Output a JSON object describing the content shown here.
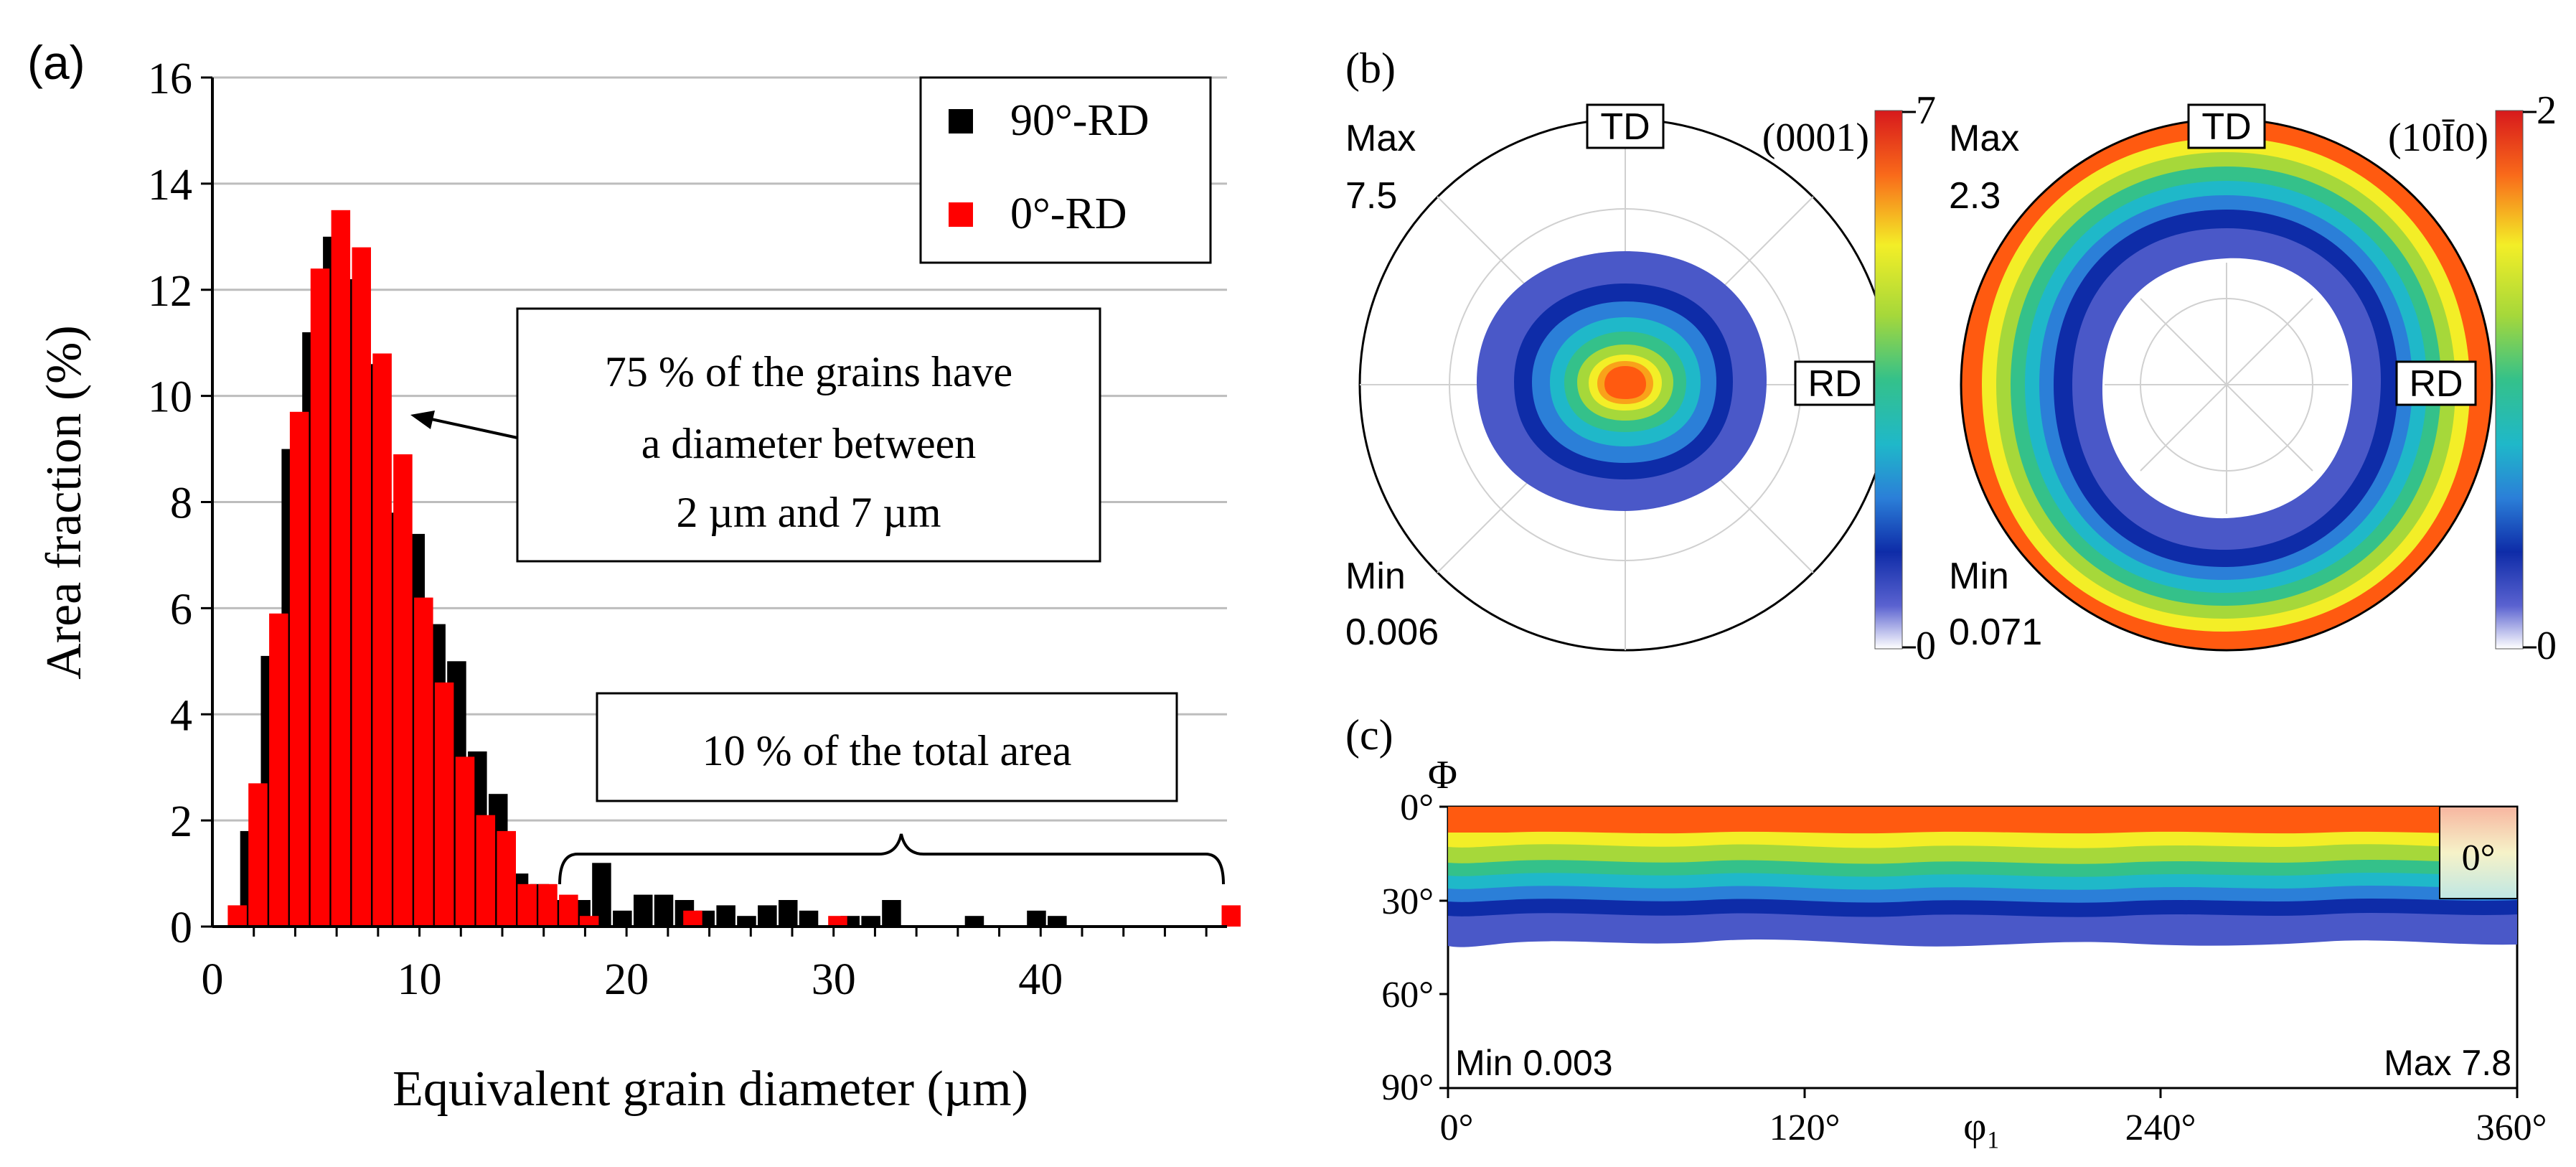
{
  "panel_a": {
    "label": "(a)",
    "annotation_text": [
      "75 % of the grains have",
      "a diameter between",
      "2 µm and 7 µm"
    ],
    "brace_text": "10 % of the total area"
  },
  "panel_b": {
    "label": "(b)",
    "pf1": {
      "plane": "(0001)",
      "td": "TD",
      "rd": "RD",
      "max_label": "Max",
      "max_value": "7.5",
      "min_label": "Min",
      "min_value": "0.006",
      "scale_max": "7",
      "scale_min": "0"
    },
    "pf2": {
      "plane": "(10Ī0)",
      "td": "TD",
      "rd": "RD",
      "max_label": "Max",
      "max_value": "2.3",
      "min_label": "Min",
      "min_value": "0.071",
      "scale_max": "2",
      "scale_min": "0"
    }
  },
  "panel_c": {
    "label": "(c)",
    "phi_label": "Φ",
    "phi1_label": "φ₁",
    "y_ticks": [
      "0°",
      "30°",
      "60°",
      "90°"
    ],
    "x_ticks": [
      "0°",
      "120°",
      "240°",
      "360°"
    ],
    "min_text": "Min 0.003",
    "max_text": "Max 7.8",
    "inset_label": "0°"
  },
  "colors": {
    "series_90": "#000000",
    "series_0": "#ff0000"
  },
  "chart_data": {
    "type": "bar",
    "title": "",
    "xlabel": "Equivalent grain diameter (µm)",
    "ylabel": "Area fraction (%)",
    "xlim": [
      0,
      49
    ],
    "ylim": [
      0,
      16
    ],
    "xticks": [
      0,
      10,
      20,
      30,
      40
    ],
    "yticks": [
      0,
      2,
      4,
      6,
      8,
      10,
      12,
      14,
      16
    ],
    "grid": true,
    "legend": "top-right",
    "series": [
      {
        "name": "90°-RD",
        "color": "#000000",
        "x": [
          1.8,
          2.8,
          3.8,
          4.8,
          5.8,
          6.8,
          7.8,
          8.8,
          9.8,
          10.8,
          11.8,
          12.8,
          13.8,
          14.8,
          15.8,
          16.8,
          17.8,
          18.8,
          19.8,
          20.8,
          21.8,
          22.8,
          23.8,
          24.8,
          25.8,
          26.8,
          27.8,
          28.8,
          30.8,
          31.8,
          32.8,
          36.8,
          39.8,
          40.8
        ],
        "values": [
          1.8,
          5.1,
          9.0,
          11.2,
          13.0,
          12.2,
          10.6,
          7.8,
          7.4,
          5.7,
          5.0,
          3.3,
          2.5,
          1.0,
          0.8,
          0.5,
          0.5,
          1.2,
          0.3,
          0.6,
          0.6,
          0.5,
          0.3,
          0.4,
          0.2,
          0.4,
          0.5,
          0.3,
          0.2,
          0.2,
          0.5,
          0.2,
          0.3,
          0.2
        ]
      },
      {
        "name": "0°-RD",
        "color": "#ff0000",
        "x": [
          1.2,
          2.2,
          3.2,
          4.2,
          5.2,
          6.2,
          7.2,
          8.2,
          9.2,
          10.2,
          11.2,
          12.2,
          13.2,
          14.2,
          15.2,
          16.2,
          17.2,
          18.2,
          23.2,
          30.2,
          49.2
        ],
        "values": [
          0.4,
          2.7,
          5.9,
          9.7,
          12.4,
          13.5,
          12.8,
          10.8,
          8.9,
          6.2,
          4.6,
          3.2,
          2.1,
          1.8,
          0.8,
          0.8,
          0.6,
          0.2,
          0.3,
          0.2,
          0.4
        ]
      }
    ]
  }
}
